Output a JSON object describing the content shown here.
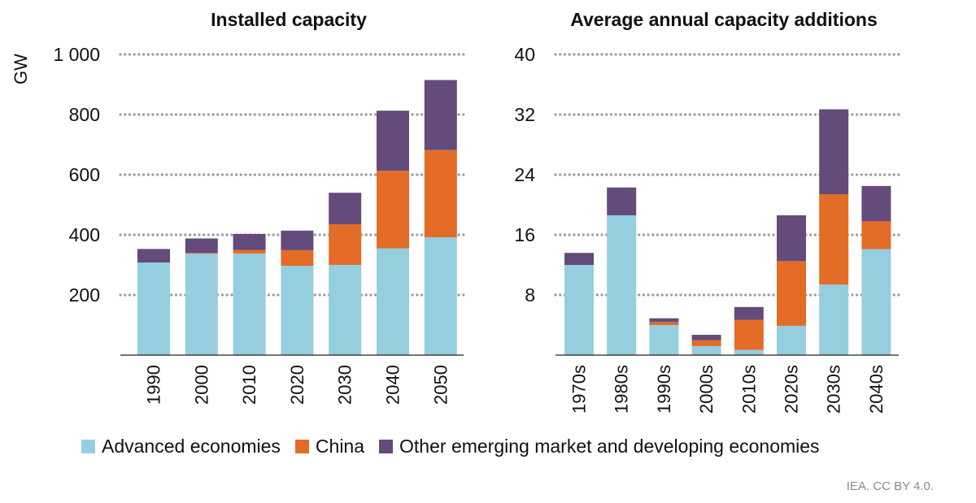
{
  "chart_data": [
    {
      "type": "bar",
      "stacked": true,
      "title": "Installed capacity",
      "ylabel": "GW",
      "ylim": [
        0,
        1000
      ],
      "yticks": [
        200,
        400,
        600,
        800,
        1000
      ],
      "ytick_labels": [
        "200",
        "400",
        "600",
        "800",
        "1 000"
      ],
      "grid": true,
      "categories": [
        "1990",
        "2000",
        "2010",
        "2020",
        "2030",
        "2040",
        "2050"
      ],
      "series": [
        {
          "name": "Advanced economies",
          "values": [
            308,
            337,
            338,
            297,
            300,
            355,
            392
          ]
        },
        {
          "name": "China",
          "values": [
            0,
            3,
            12,
            52,
            135,
            258,
            290
          ]
        },
        {
          "name": "Other emerging market and developing economies",
          "values": [
            45,
            48,
            53,
            65,
            105,
            200,
            233
          ]
        }
      ]
    },
    {
      "type": "bar",
      "stacked": true,
      "title": "Average annual capacity additions",
      "ylabel": "",
      "ylim": [
        0,
        40
      ],
      "yticks": [
        8,
        16,
        24,
        32,
        40
      ],
      "ytick_labels": [
        "8",
        "16",
        "24",
        "32",
        "40"
      ],
      "grid": true,
      "categories": [
        "1970s",
        "1980s",
        "1990s",
        "2000s",
        "2010s",
        "2020s",
        "2030s",
        "2040s"
      ],
      "series": [
        {
          "name": "Advanced economies",
          "values": [
            12.0,
            18.6,
            4.0,
            1.2,
            0.7,
            3.9,
            9.4,
            14.1
          ]
        },
        {
          "name": "China",
          "values": [
            0.0,
            0.0,
            0.4,
            0.8,
            4.0,
            8.6,
            12.0,
            3.7
          ]
        },
        {
          "name": "Other emerging market and developing economies",
          "values": [
            1.6,
            3.7,
            0.5,
            0.7,
            1.7,
            6.1,
            11.3,
            4.7
          ]
        }
      ]
    }
  ],
  "legend": {
    "position": "bottom",
    "items": [
      {
        "label": "Advanced economies",
        "color": "#95CEDF"
      },
      {
        "label": "China",
        "color": "#E36C26"
      },
      {
        "label": "Other emerging market and developing economies",
        "color": "#634B7C"
      }
    ]
  },
  "colors": {
    "grid": "#9d9d9d",
    "axis": "#222222"
  },
  "credit": "IEA. CC BY 4.0."
}
